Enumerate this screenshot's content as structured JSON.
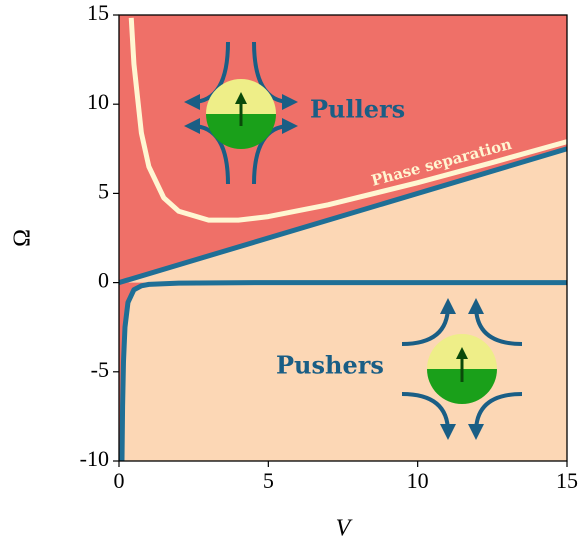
{
  "chart_data": {
    "type": "line",
    "x_label": "V",
    "y_label": "Ω",
    "xlim": [
      0,
      15
    ],
    "ylim": [
      -10,
      15
    ],
    "xticks": [
      0,
      5,
      10,
      15
    ],
    "yticks": [
      -10,
      -5,
      0,
      5,
      10,
      15
    ],
    "background_color": "#fcd7b5",
    "region_color": "#ef7068",
    "series": [
      {
        "color": "#fff6d2",
        "x": [
          0.41,
          0.5,
          0.75,
          1,
          1.5,
          2,
          3,
          4,
          5,
          7,
          10,
          12.5,
          15
        ],
        "values": [
          14.84,
          12.25,
          8.38,
          6.5,
          4.75,
          4,
          3.5,
          3.5,
          3.7,
          4.36,
          5.6,
          6.73,
          7.9
        ]
      },
      {
        "color": "#1f6f96",
        "x": [
          0,
          15
        ],
        "values": [
          0,
          7.5
        ]
      },
      {
        "color": "#1f6f96",
        "x": [
          0.1,
          0.12,
          0.15,
          0.2,
          0.3,
          0.5,
          0.75,
          1,
          2,
          5,
          15
        ],
        "values": [
          -10,
          -6.94,
          -4.44,
          -2.5,
          -1.11,
          -0.4,
          -0.18,
          -0.1,
          -0.03,
          0,
          0
        ]
      }
    ],
    "annotations": [
      "Pullers",
      "Pushers",
      "Phase separation"
    ]
  }
}
